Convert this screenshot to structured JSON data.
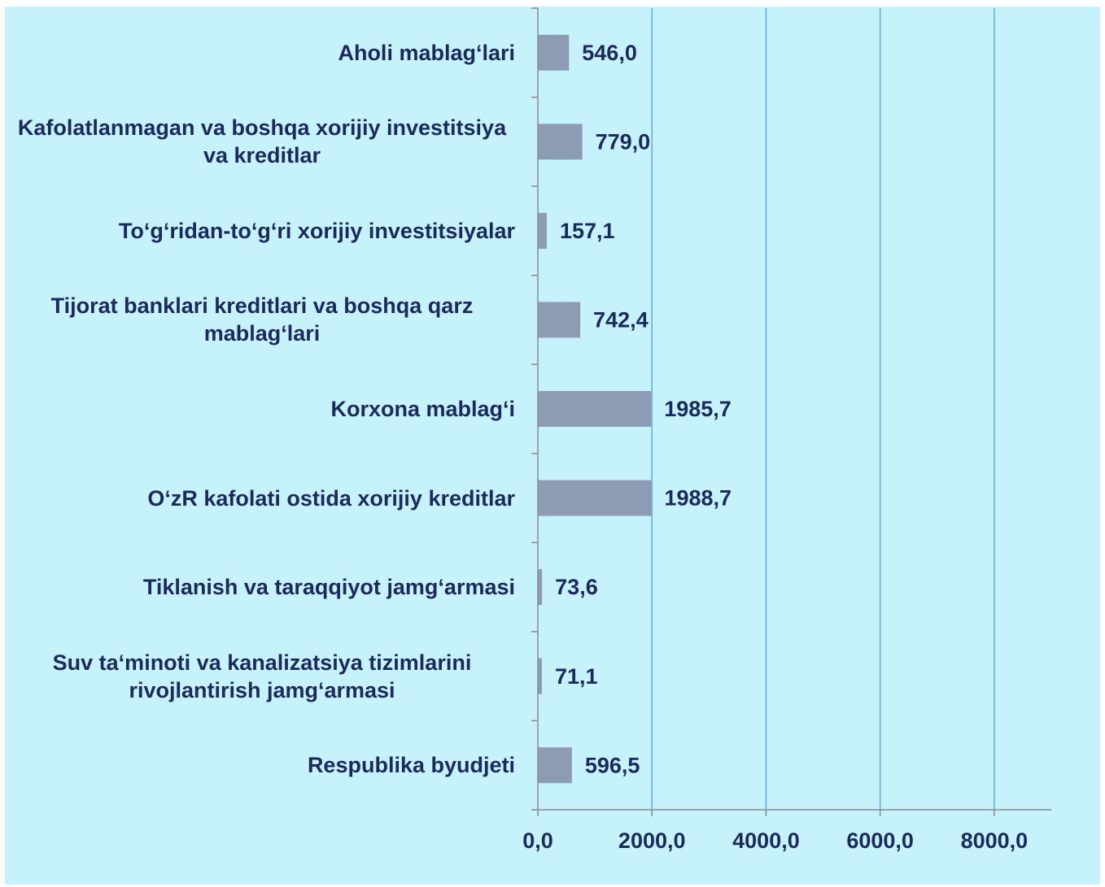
{
  "chart_data": {
    "type": "barh",
    "categories": [
      "Aholi mablag‘lari",
      "Kafolatlanmagan va boshqa xorijiy investitsiya va kreditlar",
      "To‘g‘ridan-to‘g‘ri xorijiy investitsiyalar",
      "Tijorat banklari kreditlari va  boshqa qarz mablag‘lari",
      "Korxona mablag‘i",
      "O‘zR kafolati ostida xorijiy kreditlar",
      "Tiklanish va taraqqiyot jamg‘armasi",
      "Suv ta‘minoti va kanalizatsiya tizimlarini rivojlantirish jamg‘armasi",
      "Respublika byudjeti"
    ],
    "values": [
      546.0,
      779.0,
      157.1,
      742.4,
      1985.7,
      1988.7,
      73.6,
      71.1,
      596.5
    ],
    "value_labels": [
      "546,0",
      "779,0",
      "157,1",
      "742,4",
      "1985,7",
      "1988,7",
      "73,6",
      "71,1",
      "596,5"
    ],
    "color": "#8e9bb4",
    "xlim": [
      0,
      9000
    ],
    "xticks": [
      {
        "value": 0,
        "label": "0,0"
      },
      {
        "value": 2000,
        "label": "2000,0"
      },
      {
        "value": 4000,
        "label": "4000,0"
      },
      {
        "value": 6000,
        "label": "6000,0"
      },
      {
        "value": 8000,
        "label": "8000,0"
      }
    ],
    "grid": true
  }
}
